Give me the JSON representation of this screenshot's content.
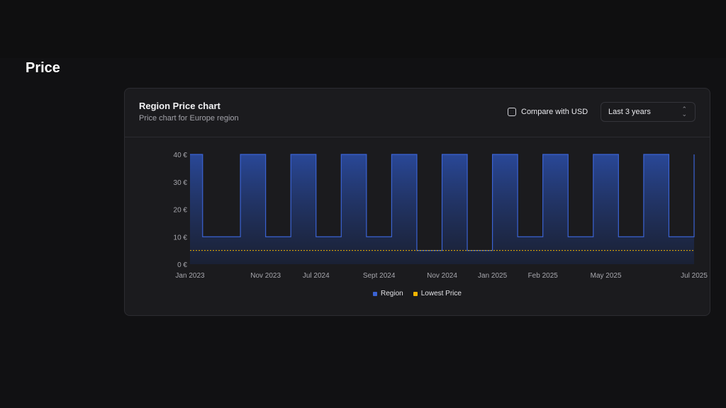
{
  "page": {
    "title": "Price"
  },
  "card": {
    "title": "Region Price chart",
    "subtitle": "Price chart for Europe region",
    "compare_label": "Compare with USD",
    "compare_checked": false,
    "range_value": "Last 3 years"
  },
  "colors": {
    "region": "#3b63d4",
    "lowest": "#f0b400",
    "background": "#111113",
    "card": "#1b1b1e"
  },
  "icons": {
    "range": "chevron-up-down-icon",
    "checkbox": "checkbox-icon"
  },
  "chart_data": {
    "type": "area",
    "step": true,
    "yticks": [
      "0 €",
      "10 €",
      "20 €",
      "30 €",
      "40 €"
    ],
    "ytick_values": [
      0,
      10,
      20,
      30,
      40
    ],
    "ylim": [
      0,
      40
    ],
    "xlim_index": [
      0,
      40
    ],
    "xtick_labels": [
      "Jan 2023",
      "Nov 2023",
      "Jul 2024",
      "Sept 2024",
      "Nov 2024",
      "Jan 2025",
      "Feb 2025",
      "May 2025",
      "Jul 2025"
    ],
    "xtick_positions": [
      0,
      6,
      10,
      15,
      20,
      24,
      28,
      33,
      40
    ],
    "series": [
      {
        "name": "Region",
        "values": [
          40,
          10,
          10,
          10,
          40,
          40,
          10,
          10,
          40,
          40,
          10,
          10,
          40,
          40,
          10,
          10,
          40,
          40,
          5,
          5,
          40,
          40,
          5,
          5,
          40,
          40,
          10,
          10,
          40,
          40,
          10,
          10,
          40,
          40,
          10,
          10,
          40,
          40,
          10,
          10,
          40
        ]
      },
      {
        "name": "Lowest Price",
        "constant": 5
      }
    ],
    "grid": false,
    "legend_position": "bottom"
  }
}
